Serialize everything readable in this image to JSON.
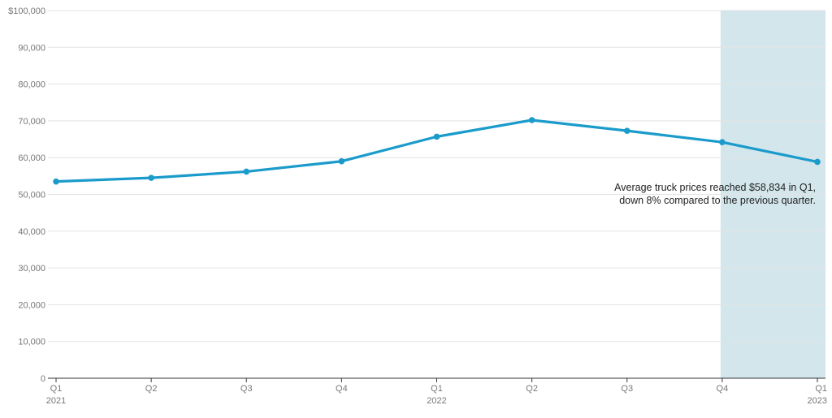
{
  "chart_data": {
    "type": "line",
    "x": [
      "Q1 2021",
      "Q2 2021",
      "Q3 2021",
      "Q4 2021",
      "Q1 2022",
      "Q2 2022",
      "Q3 2022",
      "Q4 2022",
      "Q1 2023"
    ],
    "x_tick_labels": [
      {
        "quarter": "Q1",
        "year": "2021"
      },
      {
        "quarter": "Q2",
        "year": ""
      },
      {
        "quarter": "Q3",
        "year": ""
      },
      {
        "quarter": "Q4",
        "year": ""
      },
      {
        "quarter": "Q1",
        "year": "2022"
      },
      {
        "quarter": "Q2",
        "year": ""
      },
      {
        "quarter": "Q3",
        "year": ""
      },
      {
        "quarter": "Q4",
        "year": ""
      },
      {
        "quarter": "Q1",
        "year": "2023"
      }
    ],
    "series": [
      {
        "values": [
          53500,
          54500,
          56200,
          59000,
          65700,
          70200,
          67300,
          64200,
          58834
        ],
        "color": "#1a9bcb"
      }
    ],
    "ylim": [
      0,
      100000
    ],
    "y_ticks": [
      0,
      10000,
      20000,
      30000,
      40000,
      50000,
      60000,
      70000,
      80000,
      90000,
      100000
    ],
    "y_tick_labels": [
      "0",
      "10,000",
      "20,000",
      "30,000",
      "40,000",
      "50,000",
      "60,000",
      "70,000",
      "80,000",
      "90,000",
      "$100,000"
    ],
    "grid": true,
    "highlight": {
      "from": "Q4 2022",
      "to": "Q1 2023",
      "color": "#d3e6ec"
    },
    "annotation": {
      "lines": [
        "Average truck prices reached $58,834 in Q1,",
        "down 8% compared to the previous quarter."
      ]
    },
    "title": "",
    "xlabel": "",
    "ylabel": ""
  }
}
